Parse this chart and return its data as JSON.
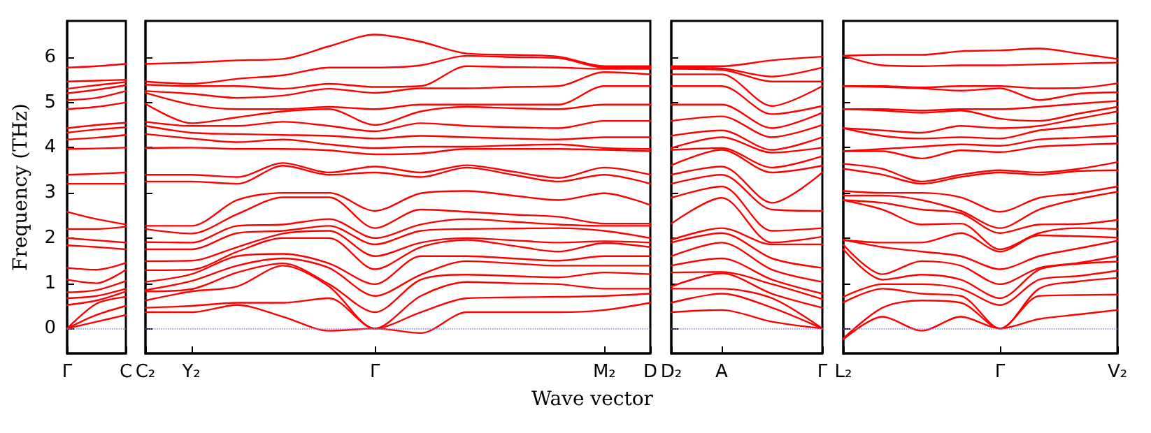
{
  "chart_data": [
    {
      "type": "line",
      "ylabel": "Frequency (THz)",
      "categories": [
        "Γ",
        null,
        "C"
      ],
      "ylim": [
        -0.55,
        6.8
      ],
      "yticks": [
        0,
        1,
        2,
        3,
        4,
        5,
        6
      ],
      "ref_lines": [
        {
          "axis": "y",
          "value": 0,
          "color": "#8080ff",
          "line_style": "dotted"
        }
      ],
      "series": [
        {
          "color": "#ff0000",
          "values": [
            0,
            0.15,
            0.3
          ]
        },
        {
          "color": "#ff0000",
          "values": [
            0,
            0.3,
            0.5
          ]
        },
        {
          "color": "#ff0000",
          "values": [
            0,
            0.55,
            0.7
          ]
        },
        {
          "color": "#ff0000",
          "values": [
            0.52,
            0.62,
            0.82
          ]
        },
        {
          "color": "#ff0000",
          "values": [
            0.67,
            0.72,
            0.88
          ]
        },
        {
          "color": "#ff0000",
          "values": [
            0.8,
            0.85,
            1.05
          ]
        },
        {
          "color": "#ff0000",
          "values": [
            1.08,
            1.0,
            1.3
          ]
        },
        {
          "color": "#ff0000",
          "values": [
            1.34,
            1.3,
            1.45
          ]
        },
        {
          "color": "#ff0000",
          "values": [
            1.84,
            1.8,
            1.75
          ]
        },
        {
          "color": "#ff0000",
          "values": [
            2.0,
            1.95,
            1.9
          ]
        },
        {
          "color": "#ff0000",
          "values": [
            2.2,
            2.2,
            2.25
          ]
        },
        {
          "color": "#ff0000",
          "values": [
            2.58,
            2.42,
            2.3
          ]
        },
        {
          "color": "#ff0000",
          "values": [
            3.2,
            3.2,
            3.2
          ]
        },
        {
          "color": "#ff0000",
          "values": [
            3.4,
            3.42,
            3.45
          ]
        },
        {
          "color": "#ff0000",
          "values": [
            3.97,
            3.98,
            4.0
          ]
        },
        {
          "color": "#ff0000",
          "values": [
            4.18,
            4.22,
            4.28
          ]
        },
        {
          "color": "#ff0000",
          "values": [
            4.33,
            4.4,
            4.45
          ]
        },
        {
          "color": "#ff0000",
          "values": [
            4.43,
            4.5,
            4.55
          ]
        },
        {
          "color": "#ff0000",
          "values": [
            4.85,
            4.9,
            5.0
          ]
        },
        {
          "color": "#ff0000",
          "values": [
            5.05,
            5.1,
            5.25
          ]
        },
        {
          "color": "#ff0000",
          "values": [
            5.2,
            5.28,
            5.38
          ]
        },
        {
          "color": "#ff0000",
          "values": [
            5.3,
            5.38,
            5.45
          ]
        },
        {
          "color": "#ff0000",
          "values": [
            5.46,
            5.48,
            5.5
          ]
        },
        {
          "color": "#ff0000",
          "values": [
            5.77,
            5.8,
            5.85
          ]
        }
      ]
    },
    {
      "type": "line",
      "xlabel": "Wave vector",
      "tick_labels": "x",
      "categories": [
        "C₂",
        "Y₂",
        null,
        null,
        null,
        "Γ",
        null,
        null,
        null,
        null,
        "M₂",
        "D"
      ],
      "ylim": [
        -0.55,
        6.8
      ],
      "yticks": [
        0,
        1,
        2,
        3,
        4,
        5,
        6
      ],
      "ref_lines": [
        {
          "axis": "y",
          "value": 0,
          "color": "#8080ff",
          "line_style": "dotted"
        }
      ],
      "series": [
        {
          "color": "#ff0000",
          "values": [
            0.36,
            0.36,
            0.52,
            0.26,
            -0.05,
            0,
            -0.1,
            0.36,
            0.36,
            0.36,
            0.41,
            0.57
          ]
        },
        {
          "color": "#ff0000",
          "values": [
            0.46,
            0.5,
            0.57,
            0.57,
            0.67,
            0,
            0.36,
            0.67,
            0.69,
            0.7,
            0.72,
            0.77
          ]
        },
        {
          "color": "#ff0000",
          "values": [
            0.62,
            0.82,
            0.93,
            1.39,
            0.93,
            0,
            0.72,
            1.03,
            1.0,
            0.98,
            0.88,
            0.88
          ]
        },
        {
          "color": "#ff0000",
          "values": [
            0.82,
            0.87,
            1.24,
            1.44,
            0.98,
            0.36,
            1.08,
            1.19,
            1.16,
            1.13,
            1.24,
            1.2
          ]
        },
        {
          "color": "#ff0000",
          "values": [
            0.85,
            1.05,
            1.39,
            1.55,
            1.34,
            0.72,
            1.19,
            1.49,
            1.44,
            1.39,
            1.39,
            1.39
          ]
        },
        {
          "color": "#ff0000",
          "values": [
            1.03,
            1.2,
            1.6,
            1.65,
            1.44,
            0.98,
            1.6,
            1.6,
            1.55,
            1.5,
            1.6,
            1.6
          ]
        },
        {
          "color": "#ff0000",
          "values": [
            1.29,
            1.3,
            1.7,
            2.0,
            2.0,
            1.31,
            1.8,
            1.96,
            1.83,
            1.7,
            1.89,
            1.8
          ]
        },
        {
          "color": "#ff0000",
          "values": [
            1.49,
            1.5,
            1.8,
            2.1,
            2.16,
            1.6,
            1.9,
            2.0,
            1.95,
            1.9,
            1.93,
            1.9
          ]
        },
        {
          "color": "#ff0000",
          "values": [
            1.75,
            1.75,
            2.11,
            2.16,
            2.27,
            1.86,
            2.16,
            2.2,
            2.21,
            2.22,
            2.16,
            2.0
          ]
        },
        {
          "color": "#ff0000",
          "values": [
            1.91,
            1.9,
            2.27,
            2.3,
            2.42,
            2.0,
            2.3,
            2.42,
            2.36,
            2.3,
            2.27,
            2.27
          ]
        },
        {
          "color": "#ff0000",
          "values": [
            2.2,
            2.1,
            2.53,
            2.9,
            2.9,
            2.22,
            2.63,
            2.58,
            2.52,
            2.47,
            2.32,
            2.32
          ]
        },
        {
          "color": "#ff0000",
          "values": [
            2.27,
            2.27,
            2.84,
            3.0,
            3.0,
            2.6,
            2.99,
            3.04,
            2.94,
            2.84,
            2.99,
            2.73
          ]
        },
        {
          "color": "#ff0000",
          "values": [
            3.25,
            3.25,
            3.2,
            3.6,
            3.4,
            3.45,
            3.35,
            3.56,
            3.4,
            3.25,
            3.4,
            3.2
          ]
        },
        {
          "color": "#ff0000",
          "values": [
            3.4,
            3.4,
            3.35,
            3.66,
            3.45,
            3.58,
            3.45,
            3.61,
            3.47,
            3.33,
            3.56,
            3.4
          ]
        },
        {
          "color": "#ff0000",
          "values": [
            3.99,
            4.0,
            3.97,
            3.97,
            3.94,
            3.85,
            3.87,
            3.97,
            3.97,
            3.97,
            3.95,
            3.92
          ]
        },
        {
          "color": "#ff0000",
          "values": [
            4.3,
            4.2,
            4.12,
            4.18,
            4.07,
            3.99,
            4.02,
            4.02,
            4.05,
            4.07,
            3.99,
            3.97
          ]
        },
        {
          "color": "#ff0000",
          "values": [
            4.48,
            4.33,
            4.3,
            4.28,
            4.26,
            4.2,
            4.26,
            4.23,
            4.2,
            4.18,
            4.23,
            4.23
          ]
        },
        {
          "color": "#ff0000",
          "values": [
            4.57,
            4.48,
            4.48,
            4.57,
            4.48,
            4.36,
            4.54,
            4.48,
            4.45,
            4.43,
            4.59,
            4.59
          ]
        },
        {
          "color": "#ff0000",
          "values": [
            4.97,
            4.54,
            4.67,
            4.8,
            4.85,
            4.5,
            4.8,
            4.9,
            4.87,
            4.85,
            4.95,
            4.95
          ]
        },
        {
          "color": "#ff0000",
          "values": [
            5.21,
            4.95,
            4.85,
            4.85,
            4.9,
            4.85,
            4.95,
            4.95,
            4.95,
            4.95,
            5.36,
            5.36
          ]
        },
        {
          "color": "#ff0000",
          "values": [
            5.25,
            5.19,
            5.1,
            5.15,
            5.3,
            5.21,
            5.31,
            5.31,
            5.34,
            5.36,
            5.67,
            5.62
          ]
        },
        {
          "color": "#ff0000",
          "values": [
            5.39,
            5.36,
            5.36,
            5.3,
            5.41,
            5.34,
            5.36,
            5.8,
            5.78,
            5.77,
            5.74,
            5.74
          ]
        },
        {
          "color": "#ff0000",
          "values": [
            5.46,
            5.41,
            5.52,
            5.6,
            5.77,
            5.77,
            5.82,
            6.03,
            6.0,
            5.98,
            5.77,
            5.77
          ]
        },
        {
          "color": "#ff0000",
          "values": [
            5.85,
            5.88,
            5.93,
            5.96,
            6.24,
            6.5,
            6.34,
            6.08,
            6.05,
            6.01,
            5.8,
            5.8
          ]
        }
      ]
    },
    {
      "type": "line",
      "tick_labels": "x",
      "categories": [
        "D₂",
        "A",
        null,
        "Γ"
      ],
      "ylim": [
        -0.55,
        6.8
      ],
      "yticks": [
        0,
        1,
        2,
        3,
        4,
        5,
        6
      ],
      "ref_lines": [
        {
          "axis": "y",
          "value": 0,
          "color": "#8080ff",
          "line_style": "dotted"
        }
      ],
      "series": [
        {
          "color": "#ff0000",
          "values": [
            0.36,
            0.41,
            0.15,
            0
          ]
        },
        {
          "color": "#ff0000",
          "values": [
            0.57,
            0.77,
            0.46,
            0
          ]
        },
        {
          "color": "#ff0000",
          "values": [
            0.88,
            0.88,
            0.67,
            0
          ]
        },
        {
          "color": "#ff0000",
          "values": [
            0.93,
            1.22,
            0.77,
            0.46
          ]
        },
        {
          "color": "#ff0000",
          "values": [
            1.24,
            1.25,
            0.98,
            0.65
          ]
        },
        {
          "color": "#ff0000",
          "values": [
            1.39,
            1.55,
            1.08,
            0.77
          ]
        },
        {
          "color": "#ff0000",
          "values": [
            1.6,
            1.9,
            1.3,
            1.03
          ]
        },
        {
          "color": "#ff0000",
          "values": [
            1.9,
            2.11,
            1.55,
            1.34
          ]
        },
        {
          "color": "#ff0000",
          "values": [
            1.96,
            2.22,
            1.86,
            1.86
          ]
        },
        {
          "color": "#ff0000",
          "values": [
            2.32,
            2.89,
            1.9,
            2.03
          ]
        },
        {
          "color": "#ff0000",
          "values": [
            2.89,
            3.14,
            2.16,
            2.22
          ]
        },
        {
          "color": "#ff0000",
          "values": [
            3.2,
            3.4,
            2.63,
            2.6
          ]
        },
        {
          "color": "#ff0000",
          "values": [
            3.4,
            3.58,
            2.78,
            3.45
          ]
        },
        {
          "color": "#ff0000",
          "values": [
            3.61,
            3.95,
            3.45,
            3.6
          ]
        },
        {
          "color": "#ff0000",
          "values": [
            3.95,
            3.99,
            3.56,
            3.81
          ]
        },
        {
          "color": "#ff0000",
          "values": [
            3.99,
            4.23,
            3.89,
            4.0
          ]
        },
        {
          "color": "#ff0000",
          "values": [
            4.26,
            4.38,
            3.95,
            4.23
          ]
        },
        {
          "color": "#ff0000",
          "values": [
            4.59,
            4.69,
            4.23,
            4.5
          ]
        },
        {
          "color": "#ff0000",
          "values": [
            4.95,
            4.95,
            4.43,
            4.77
          ]
        },
        {
          "color": "#ff0000",
          "values": [
            5.36,
            5.36,
            4.74,
            4.92
          ]
        },
        {
          "color": "#ff0000",
          "values": [
            5.62,
            5.62,
            4.92,
            5.36
          ]
        },
        {
          "color": "#ff0000",
          "values": [
            5.74,
            5.72,
            5.46,
            5.46
          ]
        },
        {
          "color": "#ff0000",
          "values": [
            5.77,
            5.75,
            5.57,
            5.77
          ]
        },
        {
          "color": "#ff0000",
          "values": [
            5.8,
            5.8,
            5.93,
            6.01
          ]
        }
      ]
    },
    {
      "type": "line",
      "tick_labels": "x",
      "categories": [
        "L₂",
        null,
        null,
        null,
        "Γ",
        null,
        null,
        "V₂"
      ],
      "ylim": [
        -0.55,
        6.8
      ],
      "yticks": [
        0,
        1,
        2,
        3,
        4,
        5,
        6
      ],
      "ref_lines": [
        {
          "axis": "y",
          "value": 0,
          "color": "#8080ff",
          "line_style": "dotted"
        }
      ],
      "series": [
        {
          "color": "#ff0000",
          "values": [
            -0.24,
            0.26,
            -0.05,
            0.26,
            0,
            0.21,
            0.31,
            0.41
          ]
        },
        {
          "color": "#ff0000",
          "values": [
            -0.22,
            0.46,
            0.62,
            0.57,
            0,
            0.72,
            0.74,
            0.75
          ]
        },
        {
          "color": "#ff0000",
          "values": [
            0.58,
            0.88,
            0.77,
            0.72,
            0,
            0.88,
            1.04,
            1.12
          ]
        },
        {
          "color": "#ff0000",
          "values": [
            0.7,
            0.98,
            0.98,
            0.88,
            0.52,
            1.08,
            1.16,
            1.28
          ]
        },
        {
          "color": "#ff0000",
          "values": [
            1.75,
            1.08,
            1.19,
            1.08,
            0.67,
            1.3,
            1.43,
            1.48
          ]
        },
        {
          "color": "#ff0000",
          "values": [
            1.85,
            1.2,
            1.49,
            1.39,
            0.98,
            1.34,
            1.45,
            1.6
          ]
        },
        {
          "color": "#ff0000",
          "values": [
            1.96,
            1.8,
            1.7,
            1.6,
            1.31,
            1.6,
            1.77,
            1.94
          ]
        },
        {
          "color": "#ff0000",
          "values": [
            1.96,
            1.9,
            1.9,
            2.11,
            1.7,
            2.06,
            2.04,
            2.01
          ]
        },
        {
          "color": "#ff0000",
          "values": [
            2.84,
            2.63,
            2.3,
            2.32,
            1.75,
            2.11,
            2.22,
            2.2
          ]
        },
        {
          "color": "#ff0000",
          "values": [
            2.84,
            2.78,
            2.63,
            2.55,
            2.11,
            2.3,
            2.31,
            2.4
          ]
        },
        {
          "color": "#ff0000",
          "values": [
            2.94,
            2.94,
            2.84,
            2.6,
            2.22,
            2.63,
            2.86,
            3.02
          ]
        },
        {
          "color": "#ff0000",
          "values": [
            3.04,
            3.0,
            3.0,
            2.9,
            2.58,
            2.89,
            2.99,
            3.14
          ]
        },
        {
          "color": "#ff0000",
          "values": [
            3.53,
            3.4,
            3.2,
            3.35,
            3.45,
            3.4,
            3.48,
            3.5
          ]
        },
        {
          "color": "#ff0000",
          "values": [
            3.64,
            3.53,
            3.25,
            3.4,
            3.5,
            3.45,
            3.53,
            3.68
          ]
        },
        {
          "color": "#ff0000",
          "values": [
            3.92,
            3.92,
            3.76,
            3.94,
            3.9,
            4.02,
            4.06,
            4.09
          ]
        },
        {
          "color": "#ff0000",
          "values": [
            3.92,
            3.97,
            4.02,
            4.07,
            4.04,
            4.18,
            4.22,
            4.26
          ]
        },
        {
          "color": "#ff0000",
          "values": [
            4.43,
            4.26,
            4.2,
            4.23,
            4.2,
            4.38,
            4.46,
            4.54
          ]
        },
        {
          "color": "#ff0000",
          "values": [
            4.43,
            4.38,
            4.33,
            4.48,
            4.43,
            4.48,
            4.64,
            4.8
          ]
        },
        {
          "color": "#ff0000",
          "values": [
            4.85,
            4.82,
            4.77,
            4.82,
            4.64,
            4.59,
            4.75,
            4.9
          ]
        },
        {
          "color": "#ff0000",
          "values": [
            4.85,
            4.85,
            4.82,
            4.85,
            4.85,
            4.9,
            4.97,
            5.03
          ]
        },
        {
          "color": "#ff0000",
          "values": [
            5.36,
            5.34,
            5.31,
            5.26,
            5.31,
            5.05,
            5.19,
            5.22
          ]
        },
        {
          "color": "#ff0000",
          "values": [
            5.36,
            5.36,
            5.33,
            5.36,
            5.36,
            5.31,
            5.32,
            5.42
          ]
        },
        {
          "color": "#ff0000",
          "values": [
            6.03,
            5.82,
            5.8,
            5.82,
            5.82,
            5.84,
            5.86,
            5.88
          ]
        },
        {
          "color": "#ff0000",
          "values": [
            6.03,
            6.05,
            6.05,
            6.13,
            6.15,
            6.19,
            6.08,
            5.96
          ]
        }
      ]
    }
  ]
}
